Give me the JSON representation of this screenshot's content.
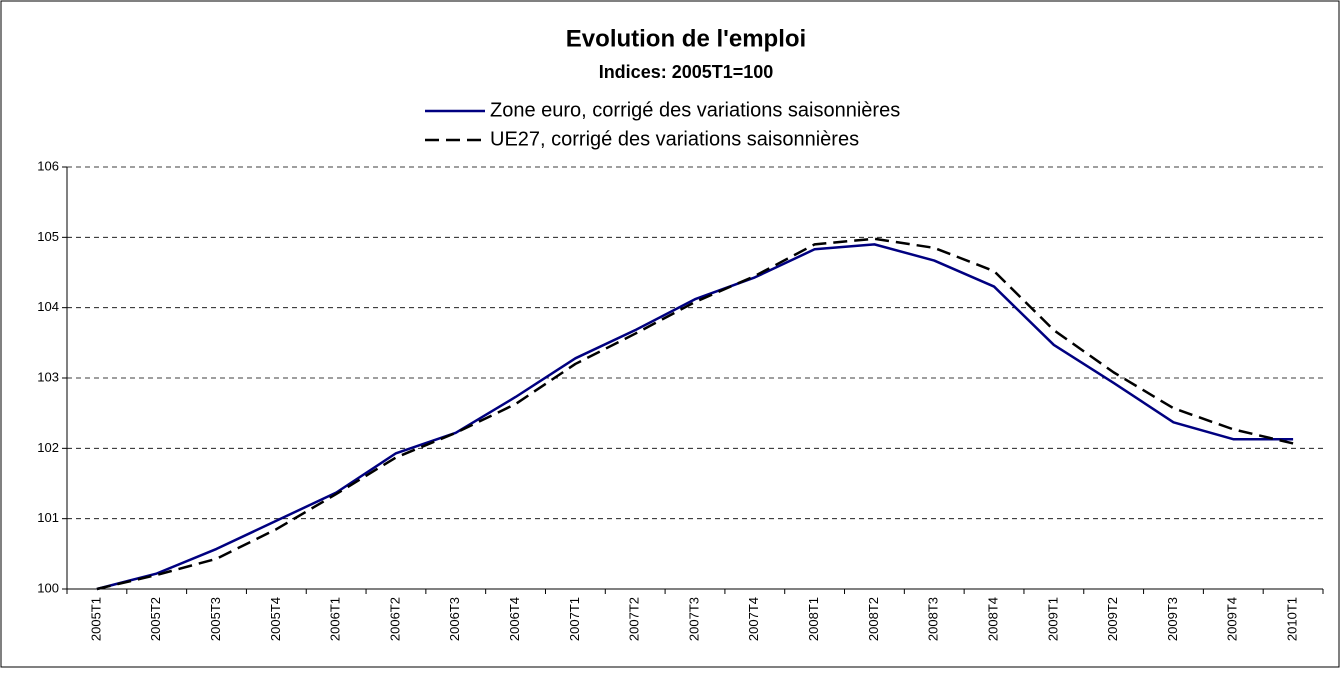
{
  "chart_data": {
    "type": "line",
    "title": "Evolution de l'emploi",
    "subtitle": "Indices: 2005T1=100",
    "categories": [
      "2005T1",
      "2005T2",
      "2005T3",
      "2005T4",
      "2006T1",
      "2006T2",
      "2006T3",
      "2006T4",
      "2007T1",
      "2007T2",
      "2007T3",
      "2007T4",
      "2008T1",
      "2008T2",
      "2008T3",
      "2008T4",
      "2009T1",
      "2009T2",
      "2009T3",
      "2009T4",
      "2010T1"
    ],
    "series": [
      {
        "name": "Zone euro, corrigé des variations saisonnières",
        "color": "#000080",
        "dash": false,
        "values": [
          100,
          100.22,
          100.57,
          100.97,
          101.37,
          101.93,
          102.22,
          102.73,
          103.28,
          103.68,
          104.12,
          104.43,
          104.83,
          104.9,
          104.67,
          104.3,
          103.47,
          102.93,
          102.37,
          102.13,
          102.13
        ]
      },
      {
        "name": "UE27, corrigé des variations saisonnières",
        "color": "#000000",
        "dash": true,
        "values": [
          100,
          100.2,
          100.43,
          100.85,
          101.35,
          101.87,
          102.22,
          102.63,
          103.2,
          103.63,
          104.08,
          104.45,
          104.9,
          104.98,
          104.85,
          104.52,
          103.68,
          103.08,
          102.57,
          102.27,
          102.07
        ]
      }
    ],
    "ylim": [
      100,
      106
    ],
    "yticks": [
      100,
      101,
      102,
      103,
      104,
      105,
      106
    ],
    "grid": true
  }
}
